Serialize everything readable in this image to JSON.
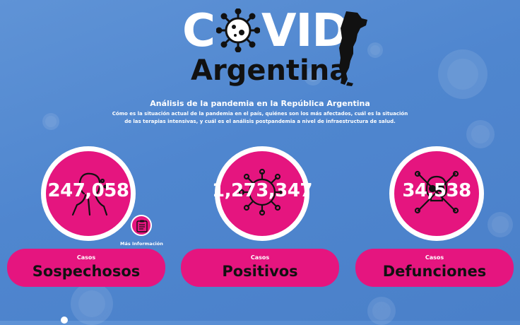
{
  "logo": {
    "covid_part1": "C",
    "covid_part2": "VID",
    "subtitle": "Argentina",
    "virus_icon": "virus-icon",
    "map_icon": "argentina-map-icon"
  },
  "headline": "Análisis de la pandemia en la República Argentina",
  "description_line1": "Cómo es la situación actual de la pandemia en el país,  quiénes son los más afectados, cuál es la situación",
  "description_line2": "de las terapias intensivas, y cuál es el análisis postpandemia a nivel de infraestructura de salud.",
  "stats": [
    {
      "count": "247,058",
      "small_label": "Casos",
      "big_label": "Sospechosos",
      "icon": "sick-person-icon"
    },
    {
      "count": "1,273,347",
      "small_label": "Casos",
      "big_label": "Positivos",
      "icon": "virus-icon"
    },
    {
      "count": "34,538",
      "small_label": "Casos",
      "big_label": "Defunciones",
      "icon": "skull-crossbones-icon"
    }
  ],
  "more_info": {
    "label": "Más Información",
    "icon": "clipboard-icon"
  },
  "colors": {
    "accent": "#e5157f",
    "background": "#5589cf",
    "dark_text": "#111111"
  }
}
